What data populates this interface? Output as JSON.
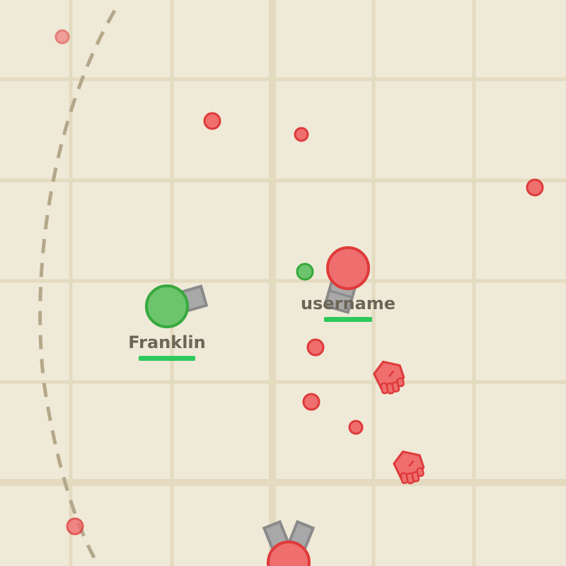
{
  "players": [
    {
      "name": "Franklin",
      "team": "green",
      "health_fraction": 1.0
    },
    {
      "name": "username",
      "team": "red",
      "health_fraction": 1.0
    }
  ],
  "colors": {
    "background": "#efe9d8",
    "grid_line": "#e5dcc3",
    "boundary_dash": "#b5a88a",
    "green_fill": "#6cc46c",
    "green_stroke": "#36a93d",
    "red_fill": "#ef6e6e",
    "red_stroke": "#df3a3a",
    "barrel_fill": "#a8a8a8",
    "barrel_stroke": "#8a8a8a",
    "health_bar": "#2ec95c",
    "name_text": "#6b6657"
  },
  "icons": [
    "red-fist-icon",
    "red-fist-icon"
  ]
}
